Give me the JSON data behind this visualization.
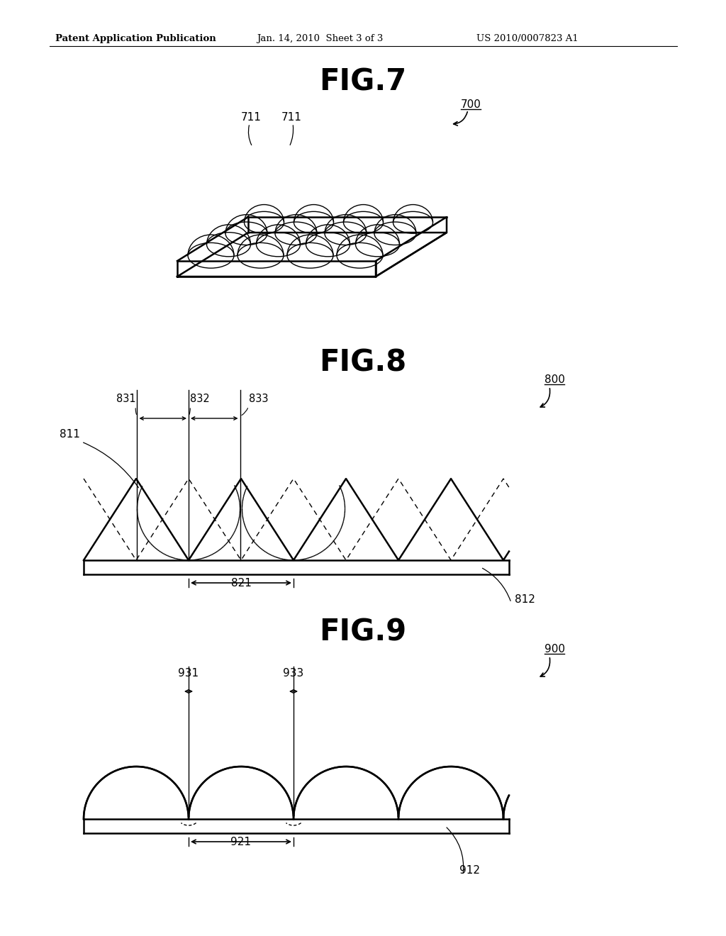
{
  "bg_color": "#ffffff",
  "header_text": "Patent Application Publication",
  "header_date": "Jan. 14, 2010  Sheet 3 of 3",
  "header_patent": "US 2010/0007823 A1",
  "fig7_title": "FIG.7",
  "fig8_title": "FIG.8",
  "fig9_title": "FIG.9",
  "fig7_ref": "700",
  "fig7_label1": "711",
  "fig7_label2": "711",
  "fig8_ref": "800",
  "fig8_label_811": "811",
  "fig8_label_821": "821",
  "fig8_label_812": "812",
  "fig8_label_831": "831",
  "fig8_label_832": "832",
  "fig8_label_833": "833",
  "fig9_ref": "900",
  "fig9_label_931": "931",
  "fig9_label_933": "933",
  "fig9_label_921": "921",
  "fig9_label_912": "912",
  "lw_main": 1.8,
  "lw_thin": 1.0,
  "lw_dashed": 1.0
}
